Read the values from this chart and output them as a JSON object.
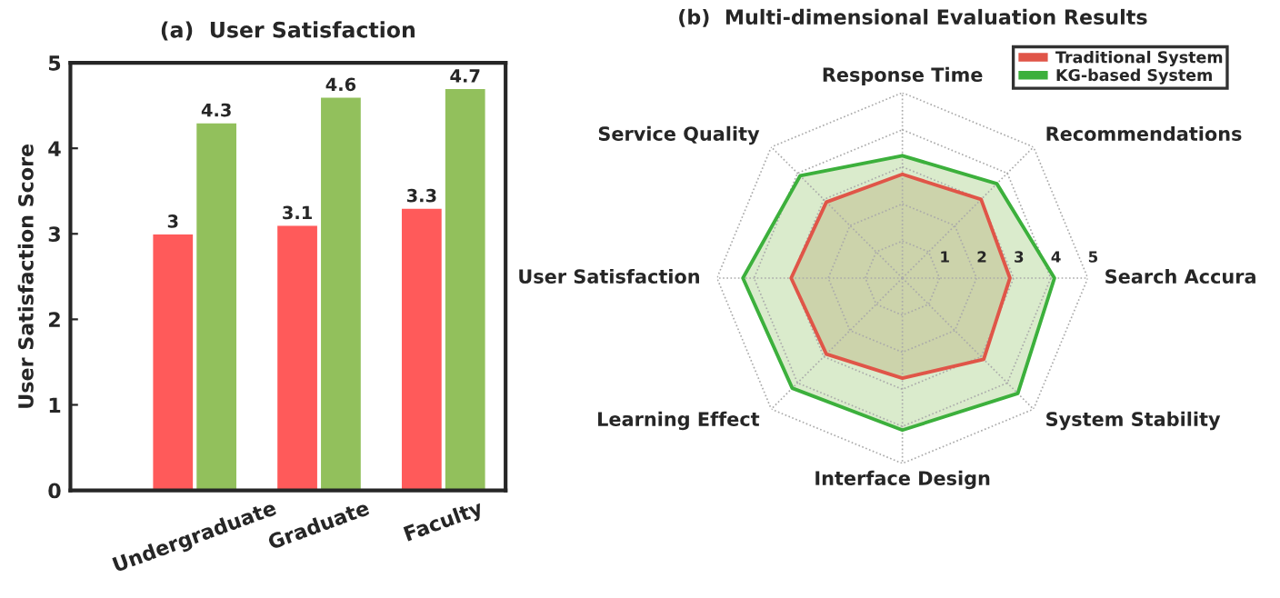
{
  "chart_data": [
    {
      "type": "bar",
      "title": "(a)  User Satisfaction",
      "ylabel": "User Satisfaction Score",
      "categories": [
        "Undergraduate",
        "Graduate",
        "Faculty"
      ],
      "series": [
        {
          "color": "#ff5a5a",
          "values": [
            3,
            3.1,
            3.3
          ]
        },
        {
          "color": "#92c05c",
          "values": [
            4.3,
            4.6,
            4.7
          ]
        }
      ],
      "ylim": [
        0,
        5
      ],
      "yticks": [
        0,
        1,
        2,
        3,
        4,
        5
      ],
      "data_labels": true,
      "grid": false,
      "legend": false
    },
    {
      "type": "radar",
      "title": "(b)  Multi-dimensional Evaluation Results",
      "categories": [
        "Response Time",
        "Recommendations",
        "Search Accura",
        "System Stability",
        "Interface Design",
        "Learning Effect",
        "User Satisfaction",
        "Service Quality"
      ],
      "series": [
        {
          "name": "Traditional System",
          "color": "#e05548",
          "values": [
            2.8,
            3.0,
            2.9,
            3.1,
            2.7,
            2.9,
            3.0,
            2.9
          ]
        },
        {
          "name": "KG-based System",
          "color": "#3cb03c",
          "values": [
            3.3,
            3.6,
            4.1,
            4.4,
            4.1,
            4.2,
            4.3,
            3.9
          ]
        }
      ],
      "ylim": [
        0,
        5
      ],
      "yticks": [
        1,
        2,
        3,
        4,
        5
      ],
      "legend": "top right",
      "grid": true
    }
  ]
}
